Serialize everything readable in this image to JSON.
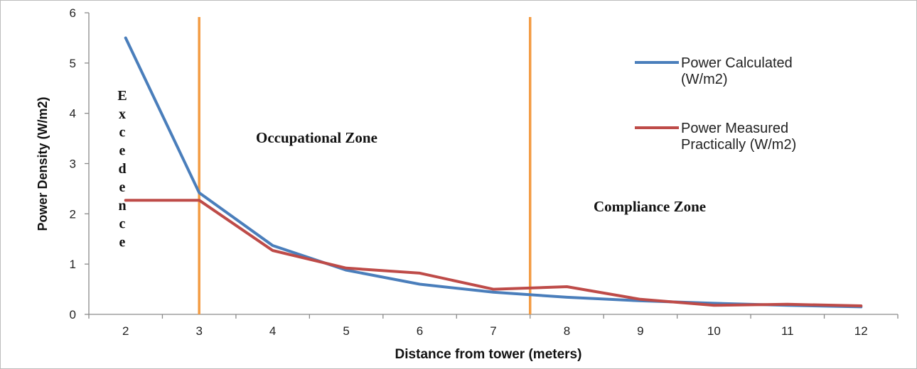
{
  "chart_data": {
    "type": "line",
    "xlabel": "Distance from tower (meters)",
    "ylabel": "Power Density (W/m2)",
    "x": [
      2,
      3,
      4,
      5,
      6,
      7,
      8,
      9,
      10,
      11,
      12
    ],
    "xlim": [
      1.5,
      12.5
    ],
    "ylim": [
      0,
      6
    ],
    "y_ticks": [
      0,
      1,
      2,
      3,
      4,
      5,
      6
    ],
    "x_tick_labels": [
      "2",
      "3",
      "4",
      "5",
      "6",
      "7",
      "8",
      "9",
      "10",
      "11",
      "12"
    ],
    "grid": false,
    "legend_position": "right",
    "series": [
      {
        "name": "Power Calculated (W/m2)",
        "name_lines": [
          "Power Calculated",
          "(W/m2)"
        ],
        "color": "#4a7ebb",
        "values": [
          5.5,
          2.42,
          1.37,
          0.88,
          0.6,
          0.44,
          0.34,
          0.27,
          0.22,
          0.18,
          0.15
        ]
      },
      {
        "name": "Power Measured Practically (W/m2)",
        "name_lines": [
          "Power Measured",
          "Practically (W/m2)"
        ],
        "color": "#be4b48",
        "values": [
          2.27,
          2.27,
          1.27,
          0.92,
          0.82,
          0.5,
          0.55,
          0.3,
          0.18,
          0.2,
          0.17
        ]
      }
    ],
    "vertical_lines": [
      {
        "x": 3,
        "color": "#f39c44"
      },
      {
        "x": 7.5,
        "color": "#f39c44"
      }
    ],
    "annotations": {
      "excedence_letters": [
        "E",
        "x",
        "c",
        "e",
        "d",
        "e",
        "n",
        "c",
        "e"
      ],
      "occupational_zone": "Occupational Zone",
      "compliance_zone": "Compliance Zone"
    }
  }
}
